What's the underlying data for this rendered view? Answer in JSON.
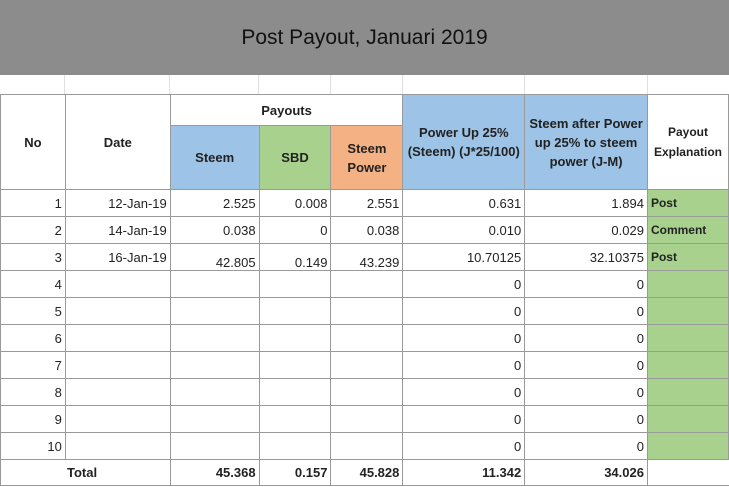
{
  "title": "Post Payout, Januari 2019",
  "headers": {
    "no": "No",
    "date": "Date",
    "payouts": "Payouts",
    "steem": "Steem",
    "sbd": "SBD",
    "steem_power": "Steem Power",
    "power_up": "Power Up 25% (Steem) (J*25/100)",
    "steem_after": "Steem after Power up 25% to steem power (J-M)",
    "payout_explanation": "Payout Explanation"
  },
  "rows": [
    {
      "no": "1",
      "date": "12-Jan-19",
      "steem": "2.525",
      "sbd": "0.008",
      "sp": "2.551",
      "power_up": "0.631",
      "after": "1.894",
      "exp": "Post"
    },
    {
      "no": "2",
      "date": "14-Jan-19",
      "steem": "0.038",
      "sbd": "0",
      "sp": "0.038",
      "power_up": "0.010",
      "after": "0.029",
      "exp": "Comment"
    },
    {
      "no": "3",
      "date": "16-Jan-19",
      "steem": "42.805",
      "sbd": "0.149",
      "sp": "43.239",
      "power_up": "10.70125",
      "after": "32.10375",
      "exp": "Post"
    },
    {
      "no": "4",
      "date": "",
      "steem": "",
      "sbd": "",
      "sp": "",
      "power_up": "0",
      "after": "0",
      "exp": ""
    },
    {
      "no": "5",
      "date": "",
      "steem": "",
      "sbd": "",
      "sp": "",
      "power_up": "0",
      "after": "0",
      "exp": ""
    },
    {
      "no": "6",
      "date": "",
      "steem": "",
      "sbd": "",
      "sp": "",
      "power_up": "0",
      "after": "0",
      "exp": ""
    },
    {
      "no": "7",
      "date": "",
      "steem": "",
      "sbd": "",
      "sp": "",
      "power_up": "0",
      "after": "0",
      "exp": ""
    },
    {
      "no": "8",
      "date": "",
      "steem": "",
      "sbd": "",
      "sp": "",
      "power_up": "0",
      "after": "0",
      "exp": ""
    },
    {
      "no": "9",
      "date": "",
      "steem": "",
      "sbd": "",
      "sp": "",
      "power_up": "0",
      "after": "0",
      "exp": ""
    },
    {
      "no": "10",
      "date": "",
      "steem": "",
      "sbd": "",
      "sp": "",
      "power_up": "0",
      "after": "0",
      "exp": ""
    }
  ],
  "total": {
    "label": "Total",
    "steem": "45.368",
    "sbd": "0.157",
    "sp": "45.828",
    "power_up": "11.342",
    "after": "34.026"
  },
  "colors": {
    "title_bg": "#8c8c8c",
    "steem_header": "#9dc3e6",
    "sbd_header": "#a9d18e",
    "steem_power_header": "#f4b183",
    "explanation_cells": "#a9d18e"
  }
}
